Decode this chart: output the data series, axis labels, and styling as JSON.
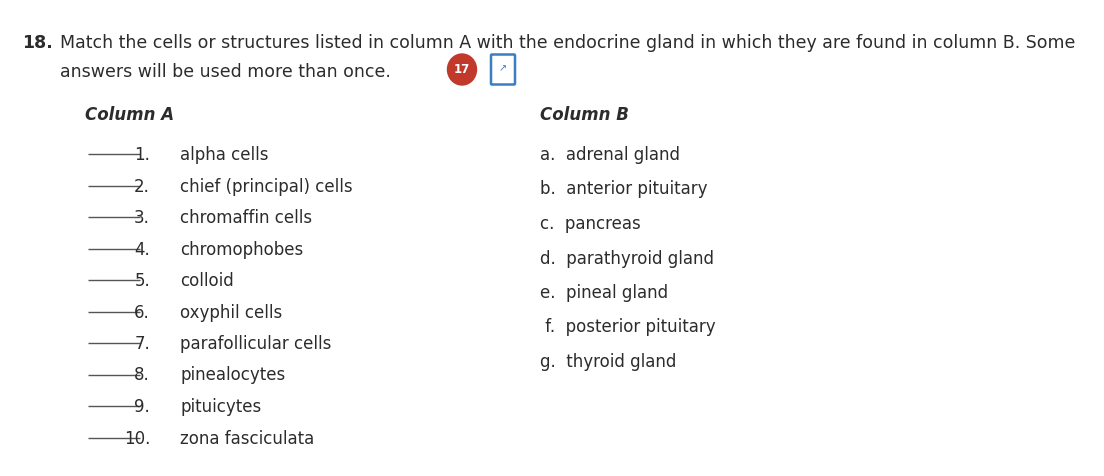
{
  "question_number": "18.",
  "question_text": "Match the cells or structures listed in column A with the endocrine gland in which they are found in column B. Some",
  "question_text2": "answers will be used more than once.",
  "col_a_header": "Column A",
  "col_b_header": "Column B",
  "col_a_numbers": [
    "1.",
    "2.",
    "3.",
    "4.",
    "5.",
    "6.",
    "7.",
    "8.",
    "9.",
    "10."
  ],
  "col_a_texts": [
    "alpha cells",
    "chief (principal) cells",
    "chromaffin cells",
    "chromophobes",
    "colloid",
    "oxyphil cells",
    "parafollicular cells",
    "pinealocytes",
    "pituicytes",
    "zona fasciculata"
  ],
  "col_b_items": [
    "a.  adrenal gland",
    "b.  anterior pituitary",
    "c.  pancreas",
    "d.  parathyroid gland",
    "e.  pineal gland",
    " f.  posterior pituitary",
    "g.  thyroid gland"
  ],
  "badge_number": "17",
  "badge_color": "#c0392b",
  "badge_text_color": "#ffffff",
  "text_color": "#2c2c2c",
  "background_color": "#ffffff",
  "line_color": "#555555",
  "font_size_question": 12.5,
  "font_size_header": 12.0,
  "font_size_items": 12.0,
  "fig_width": 11.04,
  "fig_height": 4.76
}
